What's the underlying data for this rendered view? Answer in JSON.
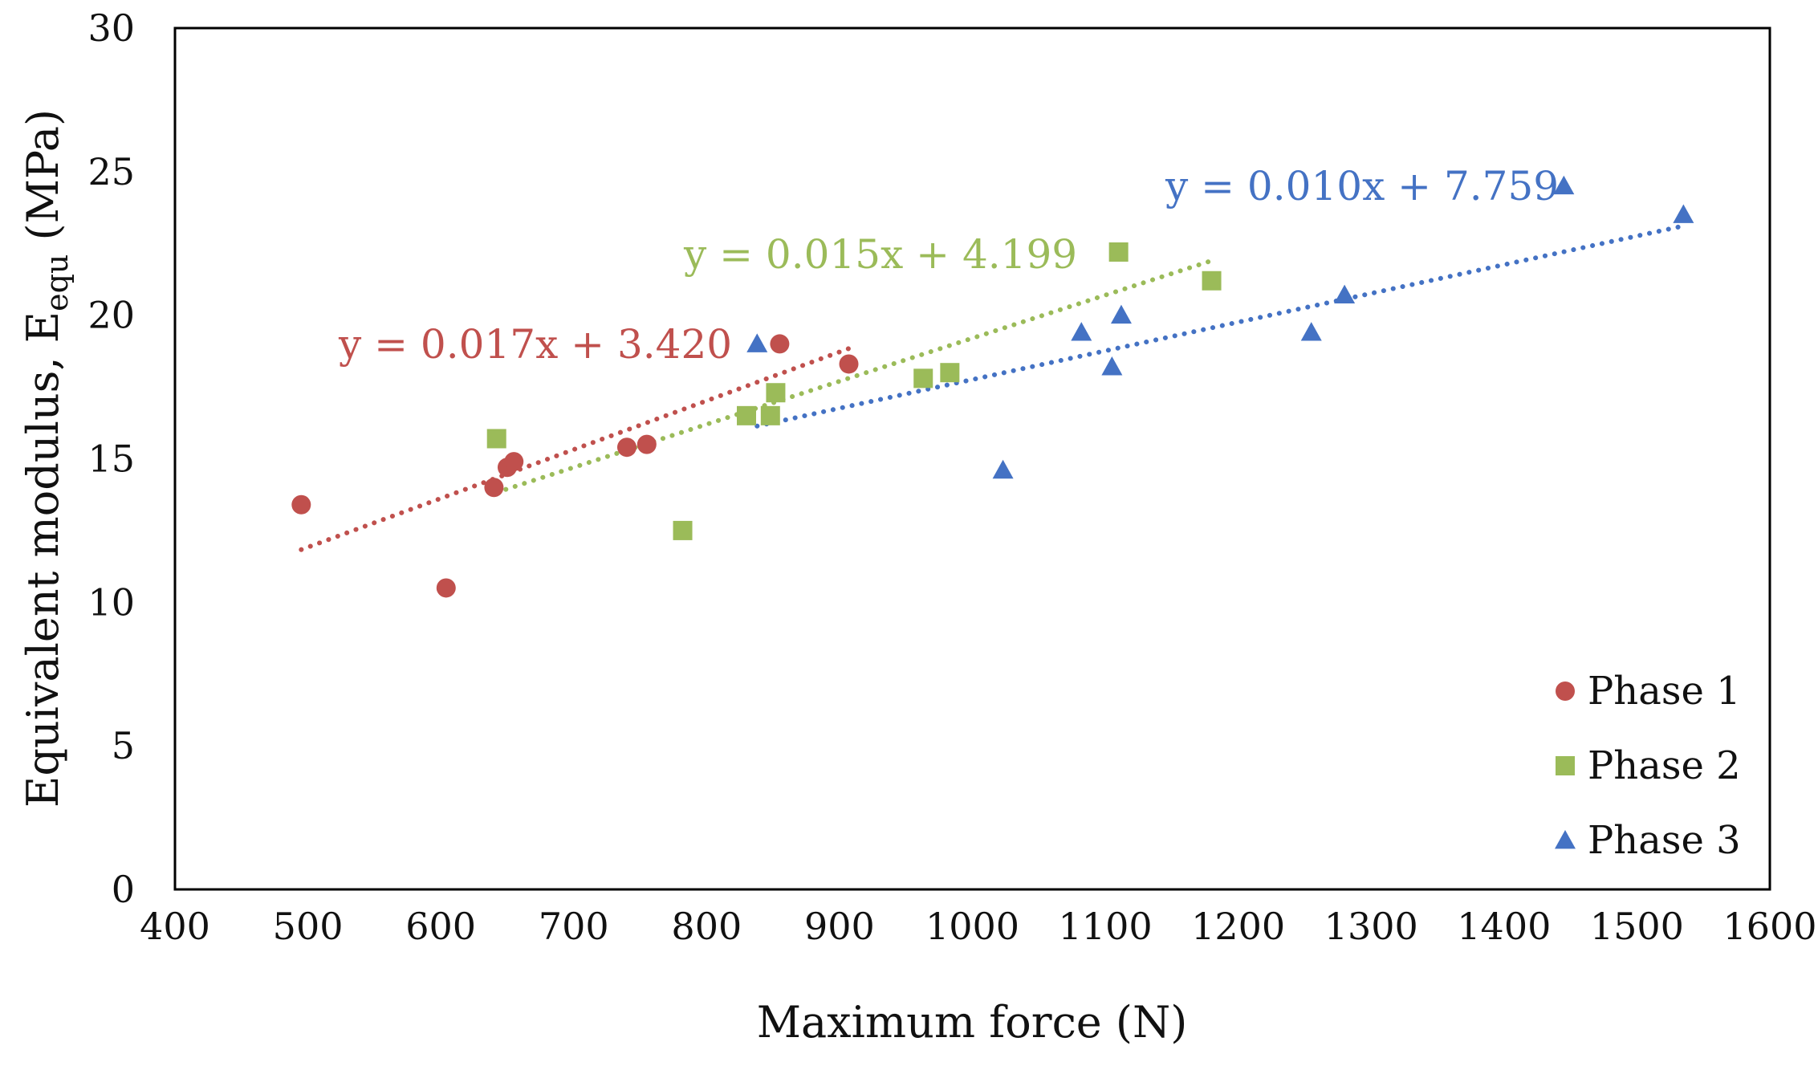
{
  "chart_data": {
    "type": "scatter",
    "title": "",
    "xlabel": "Maximum force (N)",
    "ylabel": {
      "main": "Equivalent modulus, E",
      "subscript": "equ",
      "unit": " (MPa)"
    },
    "xlim": [
      400,
      1600
    ],
    "ylim": [
      0,
      30
    ],
    "x_ticks": [
      400,
      500,
      600,
      700,
      800,
      900,
      1000,
      1100,
      1200,
      1300,
      1400,
      1500,
      1600
    ],
    "y_ticks": [
      0,
      5,
      10,
      15,
      20,
      25,
      30
    ],
    "grid": false,
    "legend_position": "bottom-right",
    "series": [
      {
        "name": "Phase 1",
        "marker": "circle",
        "color": "#C0504D",
        "points": [
          [
            495,
            13.4
          ],
          [
            604,
            10.5
          ],
          [
            640,
            14.0
          ],
          [
            650,
            14.7
          ],
          [
            655,
            14.9
          ],
          [
            740,
            15.4
          ],
          [
            755,
            15.5
          ],
          [
            855,
            19.0
          ],
          [
            907,
            18.3
          ]
        ],
        "trendline": {
          "equation": "y = 0.017x + 3.420",
          "slope": 0.017,
          "intercept": 3.42,
          "x_range": [
            495,
            907
          ]
        }
      },
      {
        "name": "Phase 2",
        "marker": "square",
        "color": "#9BBB59",
        "points": [
          [
            642,
            15.7
          ],
          [
            782,
            12.5
          ],
          [
            830,
            16.5
          ],
          [
            848,
            16.5
          ],
          [
            852,
            17.3
          ],
          [
            963,
            17.8
          ],
          [
            983,
            18.0
          ],
          [
            1110,
            22.2
          ],
          [
            1180,
            21.2
          ]
        ],
        "trendline": {
          "equation": "y = 0.015x + 4.199",
          "slope": 0.015,
          "intercept": 4.199,
          "x_range": [
            642,
            1180
          ]
        }
      },
      {
        "name": "Phase 3",
        "marker": "triangle",
        "color": "#4472C4",
        "points": [
          [
            838,
            19.0
          ],
          [
            1023,
            14.6
          ],
          [
            1082,
            19.4
          ],
          [
            1105,
            18.2
          ],
          [
            1112,
            20.0
          ],
          [
            1255,
            19.4
          ],
          [
            1280,
            20.7
          ],
          [
            1445,
            24.5
          ],
          [
            1535,
            23.5
          ]
        ],
        "trendline": {
          "equation": "y = 0.010x + 7.759",
          "slope": 0.01,
          "intercept": 7.759,
          "x_range": [
            838,
            1535
          ]
        }
      }
    ]
  }
}
